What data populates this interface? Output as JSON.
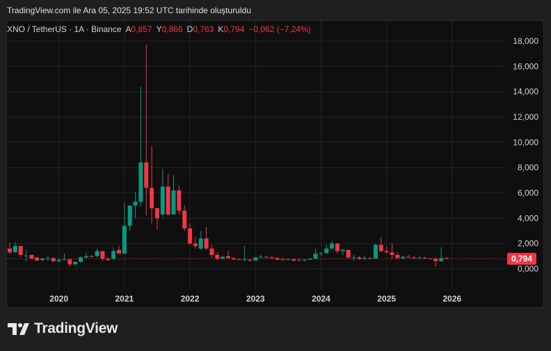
{
  "caption": "TradingView.com ile Ara 05, 2025 19:52 UTC tarihinde oluşturuldu",
  "legend": {
    "symbol": "XNO / TetherUS · 1A · Binance",
    "open_label": "A",
    "open": "0,857",
    "high_label": "Y",
    "high": "0,866",
    "low_label": "D",
    "low": "0,763",
    "close_label": "K",
    "close": "0,794",
    "change": "−0,062 (−7,24%)"
  },
  "price_tag": "0,794",
  "logo": "TradingView",
  "colors": {
    "up": "#089981",
    "down": "#f23645",
    "background": "#0f0f0f",
    "grid": "#242424"
  },
  "chart_data": {
    "type": "candlestick",
    "interval": "1 month",
    "y_ticks": [
      "0,000",
      "2,000",
      "4,000",
      "6,000",
      "8,000",
      "10,000",
      "12,000",
      "14,000",
      "16,000",
      "18,000"
    ],
    "ylim": [
      -0.3,
      18.5
    ],
    "x_ticks": [
      "2020",
      "2021",
      "2022",
      "2023",
      "2024",
      "2025",
      "2026"
    ],
    "last_price": 0.794,
    "start_month": "2019-04",
    "ohlc": [
      [
        1.6,
        2.0,
        1.2,
        1.3
      ],
      [
        1.3,
        2.1,
        1.3,
        1.8
      ],
      [
        1.8,
        1.8,
        0.9,
        1.1
      ],
      [
        1.0,
        1.5,
        0.6,
        1.05
      ],
      [
        1.1,
        1.1,
        0.8,
        0.8
      ],
      [
        0.9,
        0.9,
        0.6,
        0.65
      ],
      [
        0.7,
        0.9,
        0.6,
        0.8
      ],
      [
        0.8,
        1.0,
        0.6,
        0.85
      ],
      [
        0.85,
        0.9,
        0.55,
        0.6
      ],
      [
        0.6,
        0.8,
        0.5,
        0.7
      ],
      [
        0.7,
        1.2,
        0.7,
        0.75
      ],
      [
        0.75,
        0.8,
        0.2,
        0.35
      ],
      [
        0.35,
        0.6,
        0.3,
        0.55
      ],
      [
        0.55,
        1.0,
        0.5,
        0.9
      ],
      [
        0.9,
        1.3,
        0.8,
        1.0
      ],
      [
        1.0,
        1.1,
        0.9,
        0.95
      ],
      [
        1.0,
        1.6,
        0.9,
        1.4
      ],
      [
        1.4,
        1.4,
        0.6,
        0.8
      ],
      [
        0.8,
        0.9,
        0.6,
        0.7
      ],
      [
        0.8,
        1.7,
        0.7,
        1.4
      ],
      [
        1.5,
        1.8,
        1.2,
        1.2
      ],
      [
        1.2,
        5.2,
        1.2,
        3.4
      ],
      [
        3.4,
        5.0,
        3.0,
        5.0
      ],
      [
        5.0,
        6.1,
        4.0,
        5.3
      ],
      [
        5.3,
        14.4,
        4.9,
        8.4
      ],
      [
        8.4,
        17.7,
        4.2,
        6.4
      ],
      [
        6.4,
        9.7,
        3.6,
        4.8
      ],
      [
        4.8,
        4.8,
        3.1,
        4.0
      ],
      [
        4.3,
        7.9,
        4.1,
        6.5
      ],
      [
        6.5,
        7.5,
        4.2,
        4.3
      ],
      [
        4.3,
        7.4,
        4.3,
        6.2
      ],
      [
        6.2,
        6.6,
        4.3,
        4.6
      ],
      [
        4.6,
        5.0,
        3.0,
        3.2
      ],
      [
        3.2,
        3.6,
        1.9,
        2.0
      ],
      [
        2.0,
        2.5,
        1.6,
        1.8
      ],
      [
        1.6,
        3.0,
        1.5,
        2.4
      ],
      [
        2.4,
        3.3,
        1.5,
        1.6
      ],
      [
        1.6,
        1.9,
        0.9,
        1.1
      ],
      [
        1.1,
        1.3,
        0.7,
        0.8
      ],
      [
        0.8,
        1.0,
        0.75,
        0.95
      ],
      [
        1.0,
        1.4,
        0.8,
        0.85
      ],
      [
        0.85,
        0.9,
        0.7,
        0.75
      ],
      [
        0.75,
        0.8,
        0.7,
        0.72
      ],
      [
        0.7,
        1.8,
        0.6,
        0.75
      ],
      [
        0.72,
        0.75,
        0.6,
        0.65
      ],
      [
        0.65,
        0.95,
        0.65,
        0.9
      ],
      [
        0.9,
        1.1,
        0.85,
        0.95
      ],
      [
        0.95,
        1.0,
        0.85,
        0.9
      ],
      [
        0.9,
        1.05,
        0.8,
        0.85
      ],
      [
        0.85,
        0.9,
        0.7,
        0.72
      ],
      [
        0.75,
        0.9,
        0.65,
        0.72
      ],
      [
        0.72,
        0.8,
        0.7,
        0.75
      ],
      [
        0.75,
        0.8,
        0.6,
        0.65
      ],
      [
        0.7,
        0.8,
        0.6,
        0.65
      ],
      [
        0.65,
        0.75,
        0.6,
        0.72
      ],
      [
        0.72,
        0.85,
        0.7,
        0.8
      ],
      [
        0.8,
        1.6,
        0.8,
        1.2
      ],
      [
        1.2,
        1.3,
        1.0,
        1.25
      ],
      [
        1.25,
        1.9,
        1.2,
        1.6
      ],
      [
        1.6,
        2.2,
        1.5,
        2.0
      ],
      [
        2.0,
        2.0,
        1.2,
        1.4
      ],
      [
        1.4,
        1.6,
        1.1,
        1.5
      ],
      [
        1.5,
        1.5,
        0.8,
        0.9
      ],
      [
        0.85,
        1.1,
        0.6,
        0.9
      ],
      [
        0.9,
        1.0,
        0.7,
        0.8
      ],
      [
        0.8,
        1.0,
        0.7,
        0.85
      ],
      [
        0.85,
        0.9,
        0.8,
        0.82
      ],
      [
        0.82,
        2.0,
        0.8,
        1.9
      ],
      [
        1.9,
        2.5,
        1.3,
        1.4
      ],
      [
        1.4,
        1.8,
        1.2,
        1.3
      ],
      [
        1.3,
        2.0,
        0.8,
        1.1
      ],
      [
        1.1,
        1.3,
        0.8,
        0.85
      ],
      [
        0.85,
        1.0,
        0.75,
        0.95
      ],
      [
        0.95,
        1.1,
        0.85,
        0.9
      ],
      [
        0.9,
        1.0,
        0.75,
        0.85
      ],
      [
        0.85,
        1.0,
        0.8,
        0.88
      ],
      [
        0.88,
        0.95,
        0.8,
        0.82
      ],
      [
        0.82,
        0.85,
        0.75,
        0.78
      ],
      [
        0.8,
        0.9,
        0.15,
        0.6
      ],
      [
        0.6,
        1.7,
        0.55,
        0.85
      ],
      [
        0.857,
        0.866,
        0.763,
        0.794
      ]
    ]
  }
}
